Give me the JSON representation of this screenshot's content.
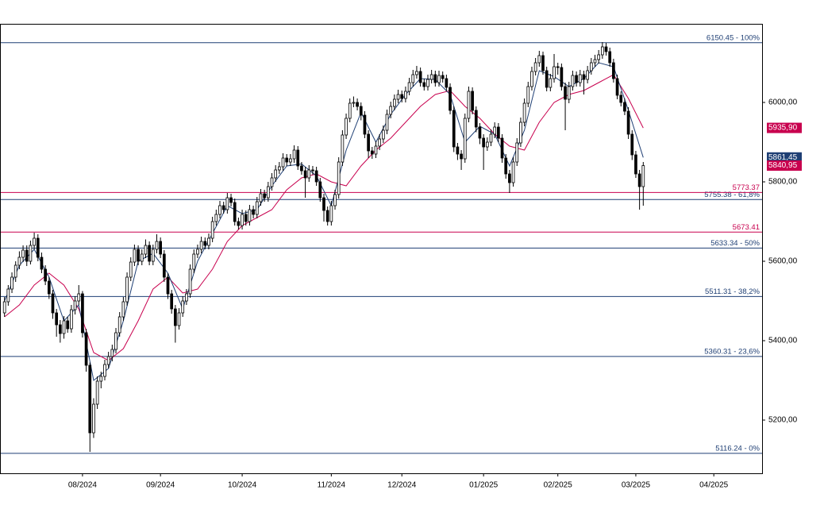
{
  "chart_data": {
    "type": "candlestick",
    "xlim": [
      -1,
      204
    ],
    "ylim": [
      5066,
      6198
    ],
    "xticks": [
      {
        "value": 21,
        "label": "08/2024"
      },
      {
        "value": 42,
        "label": "09/2024"
      },
      {
        "value": 64,
        "label": "10/2024"
      },
      {
        "value": 88,
        "label": "11/2024"
      },
      {
        "value": 107,
        "label": "12/2024"
      },
      {
        "value": 129,
        "label": "01/2025"
      },
      {
        "value": 149,
        "label": "02/2025"
      },
      {
        "value": 170,
        "label": "03/2025"
      },
      {
        "value": 191,
        "label": "04/2025"
      }
    ],
    "yticks": [
      {
        "value": 5200,
        "label": "5200,00"
      },
      {
        "value": 5400,
        "label": "5400,00"
      },
      {
        "value": 5600,
        "label": "5600,00"
      },
      {
        "value": 5800,
        "label": "5800,00"
      },
      {
        "value": 6000,
        "label": "6000,00"
      }
    ],
    "up_color": "#ffffff",
    "down_color": "#000000",
    "candles": [
      [
        5470,
        5510,
        5460,
        5498
      ],
      [
        5498,
        5540,
        5488,
        5530
      ],
      [
        5530,
        5572,
        5520,
        5560
      ],
      [
        5560,
        5600,
        5548,
        5590
      ],
      [
        5590,
        5625,
        5580,
        5610
      ],
      [
        5610,
        5640,
        5598,
        5628
      ],
      [
        5628,
        5640,
        5588,
        5600
      ],
      [
        5600,
        5652,
        5592,
        5640
      ],
      [
        5640,
        5672,
        5630,
        5658
      ],
      [
        5658,
        5668,
        5600,
        5610
      ],
      [
        5610,
        5622,
        5570,
        5580
      ],
      [
        5580,
        5590,
        5540,
        5550
      ],
      [
        5550,
        5560,
        5505,
        5518
      ],
      [
        5518,
        5528,
        5455,
        5470
      ],
      [
        5470,
        5480,
        5410,
        5440
      ],
      [
        5440,
        5452,
        5395,
        5418
      ],
      [
        5418,
        5462,
        5405,
        5450
      ],
      [
        5450,
        5460,
        5420,
        5430
      ],
      [
        5430,
        5490,
        5420,
        5478
      ],
      [
        5478,
        5512,
        5466,
        5500
      ],
      [
        5500,
        5540,
        5490,
        5518
      ],
      [
        5518,
        5525,
        5408,
        5420
      ],
      [
        5420,
        5430,
        5322,
        5338
      ],
      [
        5338,
        5345,
        5120,
        5168
      ],
      [
        5168,
        5255,
        5155,
        5240
      ],
      [
        5240,
        5310,
        5228,
        5298
      ],
      [
        5298,
        5322,
        5280,
        5310
      ],
      [
        5310,
        5352,
        5300,
        5340
      ],
      [
        5340,
        5372,
        5330,
        5360
      ],
      [
        5360,
        5390,
        5348,
        5378
      ],
      [
        5378,
        5432,
        5368,
        5420
      ],
      [
        5420,
        5472,
        5410,
        5460
      ],
      [
        5460,
        5510,
        5450,
        5498
      ],
      [
        5498,
        5572,
        5488,
        5560
      ],
      [
        5560,
        5610,
        5550,
        5598
      ],
      [
        5598,
        5642,
        5588,
        5630
      ],
      [
        5630,
        5640,
        5590,
        5600
      ],
      [
        5600,
        5630,
        5590,
        5618
      ],
      [
        5618,
        5655,
        5608,
        5640
      ],
      [
        5640,
        5650,
        5590,
        5600
      ],
      [
        5600,
        5642,
        5590,
        5630
      ],
      [
        5630,
        5668,
        5620,
        5650
      ],
      [
        5650,
        5660,
        5608,
        5618
      ],
      [
        5618,
        5628,
        5548,
        5560
      ],
      [
        5560,
        5570,
        5505,
        5518
      ],
      [
        5518,
        5528,
        5468,
        5480
      ],
      [
        5480,
        5490,
        5395,
        5438
      ],
      [
        5438,
        5482,
        5428,
        5470
      ],
      [
        5470,
        5512,
        5460,
        5500
      ],
      [
        5500,
        5530,
        5490,
        5518
      ],
      [
        5518,
        5592,
        5508,
        5580
      ],
      [
        5580,
        5630,
        5570,
        5618
      ],
      [
        5618,
        5642,
        5608,
        5630
      ],
      [
        5630,
        5662,
        5620,
        5650
      ],
      [
        5650,
        5660,
        5630,
        5640
      ],
      [
        5640,
        5670,
        5630,
        5658
      ],
      [
        5658,
        5712,
        5648,
        5700
      ],
      [
        5700,
        5730,
        5690,
        5718
      ],
      [
        5718,
        5752,
        5708,
        5740
      ],
      [
        5740,
        5750,
        5720,
        5730
      ],
      [
        5730,
        5772,
        5720,
        5760
      ],
      [
        5760,
        5770,
        5738,
        5748
      ],
      [
        5748,
        5758,
        5690,
        5700
      ],
      [
        5700,
        5710,
        5680,
        5690
      ],
      [
        5690,
        5730,
        5680,
        5718
      ],
      [
        5718,
        5728,
        5690,
        5700
      ],
      [
        5700,
        5742,
        5690,
        5730
      ],
      [
        5730,
        5740,
        5708,
        5718
      ],
      [
        5718,
        5762,
        5708,
        5750
      ],
      [
        5750,
        5782,
        5740,
        5770
      ],
      [
        5770,
        5780,
        5750,
        5760
      ],
      [
        5760,
        5800,
        5750,
        5788
      ],
      [
        5788,
        5822,
        5778,
        5810
      ],
      [
        5810,
        5842,
        5800,
        5830
      ],
      [
        5830,
        5850,
        5820,
        5838
      ],
      [
        5838,
        5872,
        5828,
        5860
      ],
      [
        5860,
        5870,
        5840,
        5850
      ],
      [
        5850,
        5870,
        5840,
        5858
      ],
      [
        5858,
        5892,
        5848,
        5880
      ],
      [
        5880,
        5890,
        5830,
        5840
      ],
      [
        5840,
        5850,
        5818,
        5828
      ],
      [
        5828,
        5838,
        5760,
        5810
      ],
      [
        5810,
        5842,
        5800,
        5830
      ],
      [
        5830,
        5840,
        5818,
        5828
      ],
      [
        5828,
        5838,
        5790,
        5800
      ],
      [
        5800,
        5810,
        5750,
        5760
      ],
      [
        5760,
        5770,
        5700,
        5728
      ],
      [
        5728,
        5738,
        5690,
        5700
      ],
      [
        5700,
        5752,
        5690,
        5740
      ],
      [
        5740,
        5780,
        5730,
        5768
      ],
      [
        5768,
        5862,
        5758,
        5850
      ],
      [
        5850,
        5930,
        5840,
        5918
      ],
      [
        5918,
        5972,
        5908,
        5960
      ],
      [
        5960,
        6010,
        5950,
        5998
      ],
      [
        5998,
        6015,
        5988,
        6000
      ],
      [
        6000,
        6010,
        5980,
        5990
      ],
      [
        5990,
        6000,
        5955,
        5968
      ],
      [
        5968,
        5978,
        5910,
        5920
      ],
      [
        5920,
        5930,
        5860,
        5878
      ],
      [
        5878,
        5888,
        5858,
        5870
      ],
      [
        5870,
        5902,
        5860,
        5890
      ],
      [
        5890,
        5920,
        5880,
        5908
      ],
      [
        5908,
        5942,
        5898,
        5930
      ],
      [
        5930,
        5982,
        5920,
        5970
      ],
      [
        5970,
        6002,
        5960,
        5990
      ],
      [
        5990,
        6020,
        5980,
        6008
      ],
      [
        6008,
        6032,
        5998,
        6020
      ],
      [
        6020,
        6030,
        6000,
        6010
      ],
      [
        6010,
        6040,
        6000,
        6028
      ],
      [
        6028,
        6062,
        6018,
        6050
      ],
      [
        6050,
        6082,
        6040,
        6070
      ],
      [
        6070,
        6092,
        6060,
        6078
      ],
      [
        6078,
        6088,
        6040,
        6050
      ],
      [
        6050,
        6060,
        6030,
        6040
      ],
      [
        6040,
        6070,
        6030,
        6058
      ],
      [
        6058,
        6082,
        6048,
        6070
      ],
      [
        6070,
        6080,
        6040,
        6050
      ],
      [
        6050,
        6080,
        6040,
        6068
      ],
      [
        6068,
        6078,
        6050,
        6060
      ],
      [
        6060,
        6070,
        6028,
        6038
      ],
      [
        6038,
        6048,
        5970,
        5980
      ],
      [
        5980,
        5990,
        5875,
        5888
      ],
      [
        5888,
        5898,
        5855,
        5870
      ],
      [
        5870,
        5880,
        5830,
        5858
      ],
      [
        5858,
        5972,
        5848,
        5960
      ],
      [
        5960,
        6040,
        5950,
        6028
      ],
      [
        6028,
        6038,
        5970,
        5980
      ],
      [
        5980,
        5990,
        5925,
        5938
      ],
      [
        5938,
        5948,
        5895,
        5910
      ],
      [
        5910,
        5920,
        5830,
        5888
      ],
      [
        5888,
        5912,
        5878,
        5900
      ],
      [
        5900,
        5932,
        5890,
        5920
      ],
      [
        5920,
        5950,
        5910,
        5938
      ],
      [
        5938,
        5948,
        5900,
        5910
      ],
      [
        5910,
        5920,
        5848,
        5860
      ],
      [
        5860,
        5870,
        5808,
        5820
      ],
      [
        5820,
        5830,
        5772,
        5798
      ],
      [
        5798,
        5862,
        5788,
        5850
      ],
      [
        5850,
        5910,
        5840,
        5898
      ],
      [
        5898,
        5962,
        5888,
        5950
      ],
      [
        5950,
        6010,
        5940,
        5998
      ],
      [
        5998,
        6052,
        5988,
        6040
      ],
      [
        6040,
        6090,
        6030,
        6078
      ],
      [
        6078,
        6112,
        6068,
        6100
      ],
      [
        6100,
        6130,
        6090,
        6118
      ],
      [
        6118,
        6128,
        6070,
        6080
      ],
      [
        6080,
        6090,
        6028,
        6038
      ],
      [
        6038,
        6072,
        6028,
        6060
      ],
      [
        6060,
        6122,
        6050,
        6090
      ],
      [
        6090,
        6100,
        6070,
        6088
      ],
      [
        6088,
        6098,
        6030,
        6040
      ],
      [
        6040,
        6050,
        5930,
        6008
      ],
      [
        6008,
        6052,
        5998,
        6040
      ],
      [
        6040,
        6080,
        6030,
        6068
      ],
      [
        6068,
        6078,
        6040,
        6050
      ],
      [
        6050,
        6082,
        6040,
        6070
      ],
      [
        6070,
        6080,
        6020,
        6058
      ],
      [
        6058,
        6092,
        6048,
        6080
      ],
      [
        6080,
        6112,
        6070,
        6100
      ],
      [
        6100,
        6120,
        6090,
        6108
      ],
      [
        6108,
        6132,
        6098,
        6120
      ],
      [
        6120,
        6152,
        6110,
        6140
      ],
      [
        6140,
        6150,
        6118,
        6128
      ],
      [
        6128,
        6138,
        6090,
        6100
      ],
      [
        6100,
        6110,
        6050,
        6060
      ],
      [
        6060,
        6070,
        6008,
        6018
      ],
      [
        6018,
        6028,
        5990,
        6000
      ],
      [
        6000,
        6010,
        5968,
        5978
      ],
      [
        5978,
        5988,
        5908,
        5920
      ],
      [
        5920,
        5930,
        5855,
        5868
      ],
      [
        5868,
        5878,
        5810,
        5820
      ],
      [
        5820,
        5830,
        5730,
        5788
      ],
      [
        5788,
        5850,
        5740,
        5840.95
      ]
    ],
    "ma_fast": {
      "color": "#1f3f74",
      "x": [
        0,
        4,
        8,
        12,
        16,
        20,
        24,
        28,
        32,
        36,
        40,
        44,
        48,
        52,
        56,
        60,
        64,
        68,
        72,
        76,
        80,
        84,
        88,
        92,
        96,
        100,
        104,
        108,
        112,
        116,
        120,
        124,
        128,
        132,
        136,
        140,
        144,
        148,
        152,
        156,
        160,
        164,
        168,
        172
      ],
      "values": [
        5500,
        5590,
        5630,
        5560,
        5450,
        5490,
        5300,
        5330,
        5450,
        5600,
        5620,
        5570,
        5480,
        5600,
        5670,
        5740,
        5720,
        5730,
        5790,
        5840,
        5845,
        5815,
        5740,
        5880,
        5975,
        5900,
        5970,
        6020,
        6060,
        6058,
        6020,
        5900,
        5940,
        5920,
        5840,
        5930,
        6080,
        6065,
        6040,
        6060,
        6100,
        6090,
        5980,
        5861.45
      ]
    },
    "ma_slow": {
      "color": "#c8004e",
      "x": [
        0,
        4,
        8,
        12,
        16,
        20,
        24,
        28,
        32,
        36,
        40,
        44,
        48,
        52,
        56,
        60,
        64,
        68,
        72,
        76,
        80,
        84,
        88,
        92,
        96,
        100,
        104,
        108,
        112,
        116,
        120,
        124,
        128,
        132,
        136,
        140,
        144,
        148,
        152,
        156,
        160,
        164,
        168,
        172
      ],
      "values": [
        5460,
        5490,
        5540,
        5570,
        5540,
        5480,
        5370,
        5350,
        5380,
        5450,
        5530,
        5560,
        5520,
        5530,
        5580,
        5650,
        5690,
        5710,
        5730,
        5780,
        5810,
        5820,
        5800,
        5790,
        5840,
        5880,
        5910,
        5950,
        5990,
        6020,
        6030,
        5990,
        5960,
        5920,
        5890,
        5880,
        5950,
        6000,
        6020,
        6030,
        6050,
        6070,
        6010,
        5935.9
      ]
    },
    "fib_color": "#1f3f74",
    "fib_levels": [
      {
        "value": 6150.45,
        "label": "6150.45 - 100%"
      },
      {
        "value": 5755.38,
        "label": "5755.38 - 61,8%"
      },
      {
        "value": 5633.34,
        "label": "5633.34 - 50%"
      },
      {
        "value": 5511.31,
        "label": "5511.31 - 38,2%"
      },
      {
        "value": 5360.31,
        "label": "5360.31 - 23,6%"
      },
      {
        "value": 5116.24,
        "label": "5116.24 - 0%"
      }
    ],
    "support_color": "#c8004e",
    "support_levels": [
      {
        "value": 5773.37,
        "label": "5773.37"
      },
      {
        "value": 5673.41,
        "label": "5673.41"
      }
    ],
    "price_tags": [
      {
        "value": 5935.9,
        "label": "5935,90",
        "color": "#c8004e"
      },
      {
        "value": 5861.45,
        "label": "5861,45",
        "color": "#1f3f74"
      },
      {
        "value": 5840.95,
        "label": "5840,95",
        "color": "#c8004e"
      }
    ]
  }
}
